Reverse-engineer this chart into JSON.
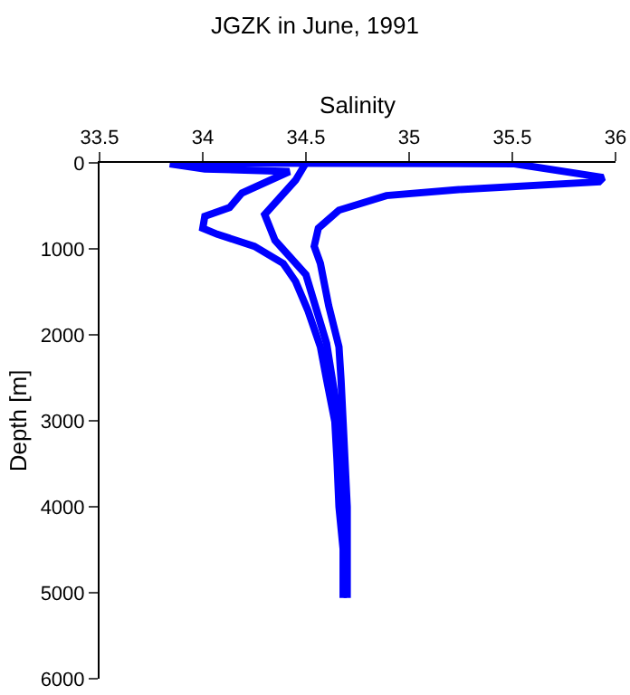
{
  "chart_data": {
    "type": "line",
    "title": "JGZK in June, 1991",
    "xlabel": "Salinity",
    "ylabel": "Depth [m]",
    "xlim": [
      33.5,
      36
    ],
    "xticks": [
      33.5,
      34,
      34.5,
      35,
      35.5,
      36
    ],
    "ylim": [
      6000,
      0
    ],
    "yticks": [
      0,
      1000,
      2000,
      3000,
      4000,
      5000,
      6000
    ],
    "marker": "none",
    "line_style": "solid",
    "series": [
      {
        "color": "#0000ff",
        "x": [
          33.84,
          34.01,
          34.42,
          34.19,
          34.13,
          34.01,
          34.0,
          34.07,
          34.25,
          34.39,
          34.45,
          34.51,
          34.57,
          34.6,
          34.64,
          34.65,
          34.66,
          34.68,
          34.68
        ],
        "values": [
          10,
          70,
          100,
          350,
          520,
          620,
          760,
          830,
          970,
          1170,
          1380,
          1720,
          2140,
          2520,
          3010,
          3440,
          4000,
          4490,
          5060
        ]
      },
      {
        "color": "#0000ff",
        "x": [
          33.87,
          35.51,
          35.94,
          35.92,
          35.24,
          34.89,
          34.66,
          34.56,
          34.54,
          34.57,
          34.61,
          34.66,
          34.67,
          34.68,
          34.7,
          34.7,
          34.7
        ],
        "values": [
          0,
          10,
          170,
          220,
          310,
          380,
          550,
          760,
          970,
          1170,
          1660,
          2140,
          2520,
          3010,
          4000,
          4490,
          5060
        ]
      },
      {
        "color": "#0000ff",
        "x": [
          34.5,
          34.45,
          34.3,
          34.35,
          34.5,
          34.6,
          34.66,
          34.69,
          34.69
        ],
        "values": [
          0,
          200,
          600,
          900,
          1300,
          2100,
          3000,
          4000,
          5000
        ]
      }
    ]
  }
}
